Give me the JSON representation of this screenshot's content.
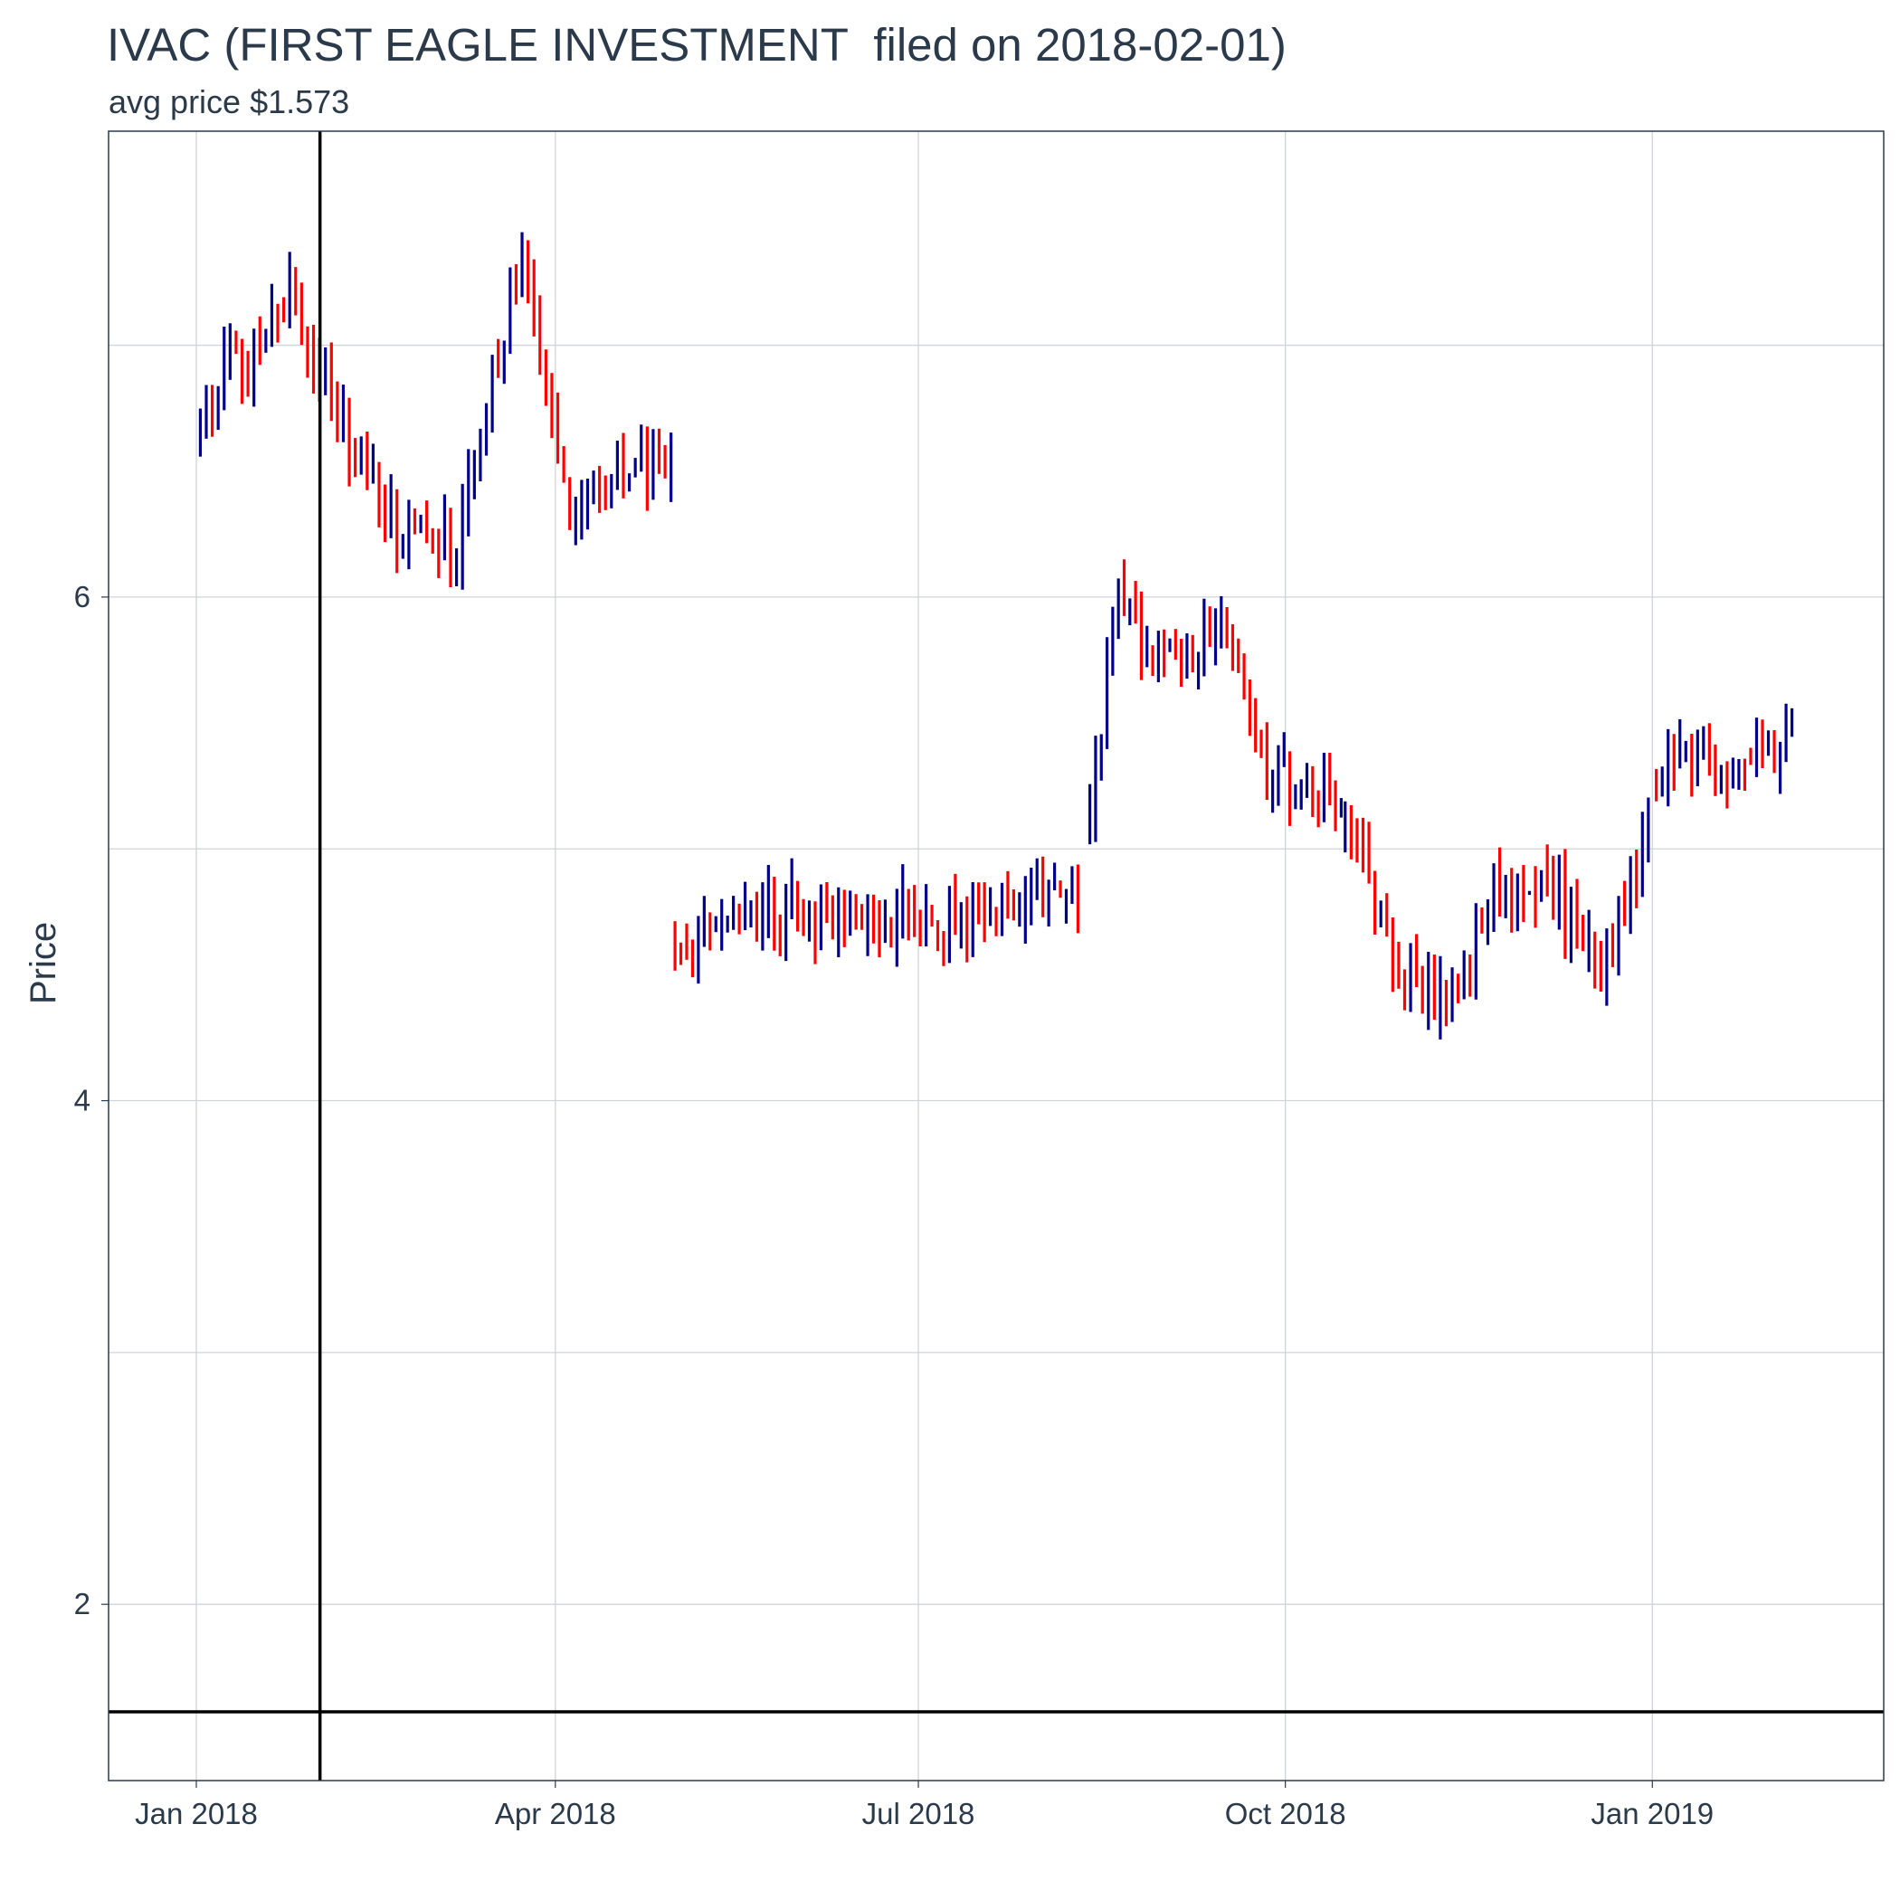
{
  "chart_data": {
    "type": "ohlc",
    "title": "IVAC (FIRST EAGLE INVESTMENT  filed on 2018-02-01)",
    "subtitle": "avg price $1.573",
    "xlabel": "",
    "ylabel": "Price",
    "ylim": [
      1.3,
      7.85
    ],
    "xlim": [
      "2017-12-10",
      "2019-02-28"
    ],
    "x_ticks": [
      {
        "date": "2018-01-01",
        "label": "Jan 2018"
      },
      {
        "date": "2018-04-01",
        "label": "Apr 2018"
      },
      {
        "date": "2018-07-01",
        "label": "Jul 2018"
      },
      {
        "date": "2018-10-01",
        "label": "Oct 2018"
      },
      {
        "date": "2019-01-01",
        "label": "Jan 2019"
      }
    ],
    "y_ticks": [
      2,
      4,
      6
    ],
    "y_minor_gridlines": [
      3,
      5,
      7
    ],
    "vline_date": "2018-02-01",
    "hline_value": 1.573,
    "grid": true,
    "colors": {
      "up": "#00008b",
      "down": "#ff0000",
      "reference": "#000000",
      "grid": "#d0d3d7",
      "text": "#2b3a4a"
    },
    "segments": [
      {
        "start": "2018-01-02",
        "end": "2018-04-30",
        "count": 80,
        "price_start": 6.6,
        "peaks": [
          [
            0.0,
            6.75
          ],
          [
            0.12,
            7.0
          ],
          [
            0.2,
            7.2
          ],
          [
            0.3,
            6.7
          ],
          [
            0.4,
            6.3
          ],
          [
            0.55,
            6.2
          ],
          [
            0.68,
            7.4
          ],
          [
            0.78,
            6.3
          ],
          [
            0.88,
            6.5
          ],
          [
            1.0,
            6.55
          ]
        ]
      },
      {
        "start": "2018-05-01",
        "end": "2018-08-10",
        "count": 70,
        "price_start": 4.7,
        "peaks": [
          [
            0.0,
            4.65
          ],
          [
            0.3,
            4.75
          ],
          [
            0.5,
            4.75
          ],
          [
            0.75,
            4.7
          ],
          [
            0.85,
            4.8
          ],
          [
            1.0,
            4.8
          ]
        ]
      },
      {
        "start": "2018-08-13",
        "end": "2018-10-15",
        "count": 45,
        "price_start": 5.1,
        "peaks": [
          [
            0.0,
            5.1
          ],
          [
            0.1,
            6.0
          ],
          [
            0.35,
            5.7
          ],
          [
            0.55,
            5.95
          ],
          [
            0.7,
            5.3
          ],
          [
            0.85,
            5.2
          ],
          [
            1.0,
            5.2
          ]
        ]
      },
      {
        "start": "2018-10-16",
        "end": "2018-12-31",
        "count": 52,
        "price_start": 5.1,
        "peaks": [
          [
            0.0,
            5.1
          ],
          [
            0.2,
            4.5
          ],
          [
            0.35,
            4.35
          ],
          [
            0.5,
            4.9
          ],
          [
            0.7,
            4.8
          ],
          [
            0.85,
            4.5
          ],
          [
            1.0,
            5.1
          ]
        ]
      },
      {
        "start": "2019-01-02",
        "end": "2019-02-05",
        "count": 24,
        "price_start": 5.3,
        "peaks": [
          [
            0.0,
            5.3
          ],
          [
            0.5,
            5.35
          ],
          [
            0.85,
            5.35
          ],
          [
            1.0,
            5.45
          ]
        ]
      }
    ]
  }
}
